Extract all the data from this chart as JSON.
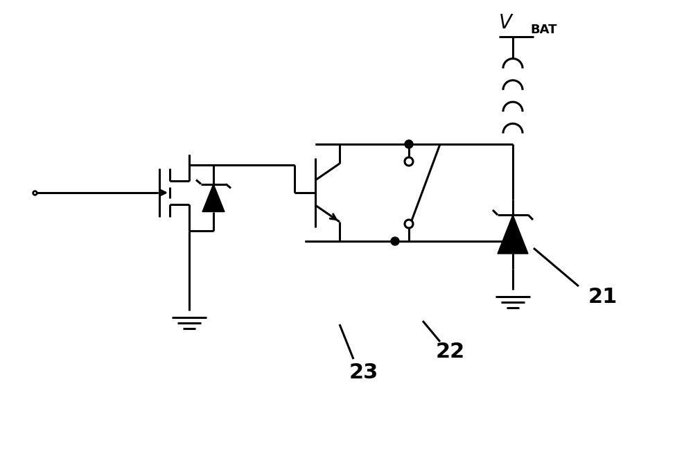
{
  "bg_color": "#ffffff",
  "line_color": "#000000",
  "line_width": 2.2,
  "title": "",
  "figsize": [
    10.0,
    6.68
  ],
  "dpi": 100,
  "vbat_label": "V",
  "vbat_sub": "BAT",
  "label_21": "21",
  "label_22": "22",
  "label_23": "23"
}
